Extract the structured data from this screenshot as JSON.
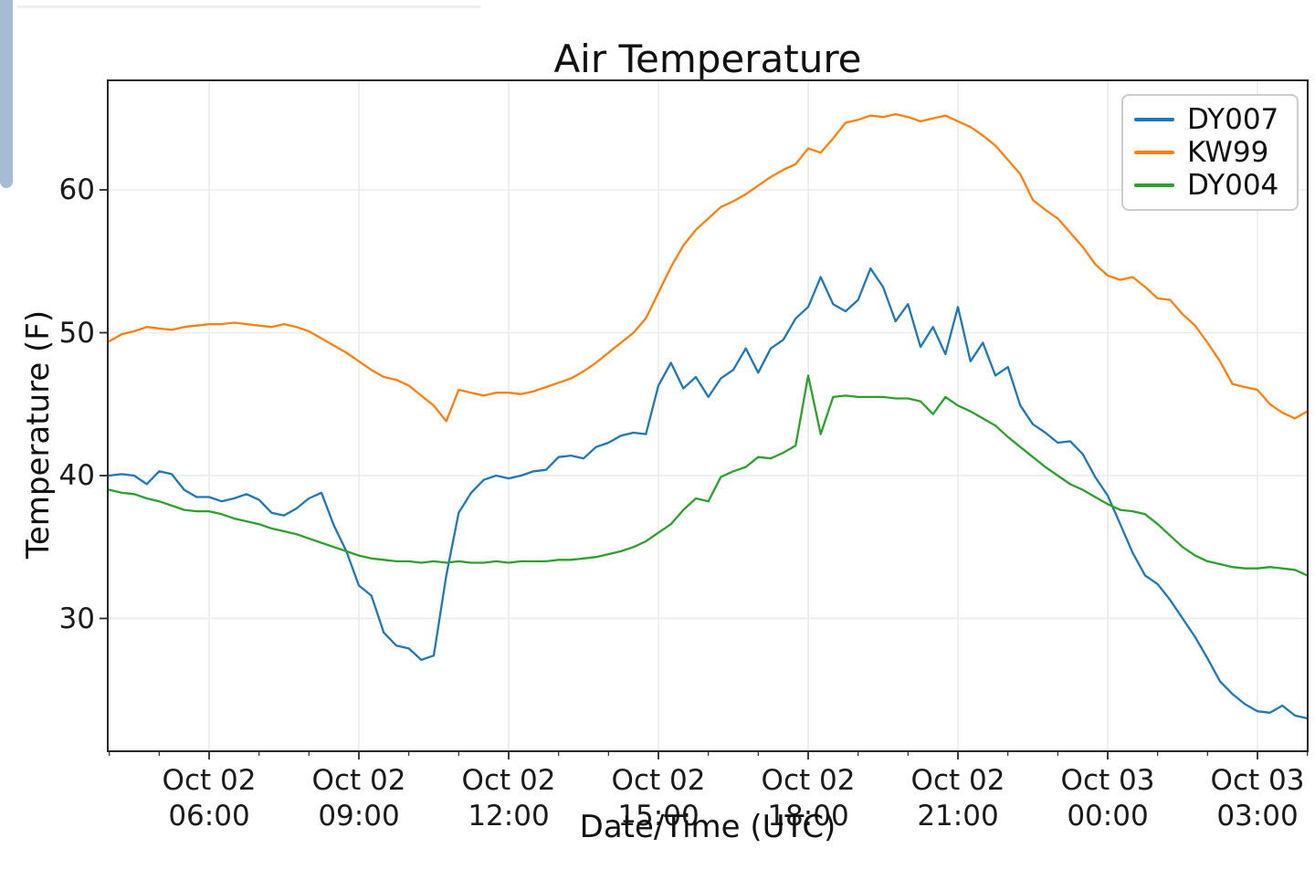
{
  "window": {
    "left_bar_color": "#a4bcd4",
    "top_edge_color": "#f0f0f1"
  },
  "chart_data": {
    "type": "line",
    "title": "Air Temperature",
    "xlabel": "Date/Time (UTC)",
    "ylabel": "Temperature (F)",
    "grid": true,
    "legend_position": "upper right",
    "background": "#ffffff",
    "gridline_color": "#ebebeb",
    "spine_color": "#2a2a2a",
    "x_start": "Oct 02 04:00 UTC",
    "x_end": "Oct 03 04:00 UTC",
    "sample_interval_minutes": 15,
    "start_hour": 4.0,
    "end_hour": 28.0,
    "ylim": [
      20.7,
      67.6
    ],
    "y_ticks": [
      30,
      40,
      50,
      60
    ],
    "x_ticks": [
      {
        "hour": 6,
        "line1": "Oct 02",
        "line2": "06:00"
      },
      {
        "hour": 9,
        "line1": "Oct 02",
        "line2": "09:00"
      },
      {
        "hour": 12,
        "line1": "Oct 02",
        "line2": "12:00"
      },
      {
        "hour": 15,
        "line1": "Oct 02",
        "line2": "15:00"
      },
      {
        "hour": 18,
        "line1": "Oct 02",
        "line2": "18:00"
      },
      {
        "hour": 21,
        "line1": "Oct 02",
        "line2": "21:00"
      },
      {
        "hour": 24,
        "line1": "Oct 03",
        "line2": "00:00"
      },
      {
        "hour": 27,
        "line1": "Oct 03",
        "line2": "03:00"
      }
    ],
    "series": [
      {
        "name": "DY007",
        "color": "#1f77b4",
        "values": [
          40.0,
          40.1,
          40.0,
          39.4,
          40.3,
          40.1,
          39.0,
          38.5,
          38.5,
          38.2,
          38.4,
          38.7,
          38.3,
          37.4,
          37.2,
          37.7,
          38.4,
          38.8,
          36.5,
          34.7,
          32.3,
          31.6,
          29.0,
          28.1,
          27.9,
          27.1,
          27.4,
          33.0,
          37.4,
          38.8,
          39.7,
          40.0,
          39.8,
          40.0,
          40.3,
          40.4,
          41.3,
          41.4,
          41.2,
          42.0,
          42.3,
          42.8,
          43.0,
          42.9,
          46.3,
          47.9,
          46.1,
          46.9,
          45.5,
          46.8,
          47.4,
          48.9,
          47.2,
          48.9,
          49.5,
          51.0,
          51.8,
          53.9,
          52.0,
          51.5,
          52.3,
          54.5,
          53.2,
          50.8,
          52.0,
          49.0,
          50.4,
          48.5,
          51.8,
          48.0,
          49.3,
          47.0,
          47.6,
          44.9,
          43.6,
          43.0,
          42.3,
          42.4,
          41.5,
          39.9,
          38.6,
          36.6,
          34.6,
          33.0,
          32.4,
          31.3,
          30.0,
          28.7,
          27.2,
          25.6,
          24.7,
          24.0,
          23.5,
          23.4,
          23.9,
          23.2,
          23.0
        ]
      },
      {
        "name": "KW99",
        "color": "#ff7f0e",
        "values": [
          49.4,
          49.9,
          50.1,
          50.4,
          50.3,
          50.2,
          50.4,
          50.5,
          50.6,
          50.6,
          50.7,
          50.6,
          50.5,
          50.4,
          50.6,
          50.4,
          50.1,
          49.6,
          49.1,
          48.6,
          48.0,
          47.4,
          46.9,
          46.7,
          46.3,
          45.6,
          44.9,
          43.8,
          46.0,
          45.8,
          45.6,
          45.8,
          45.8,
          45.7,
          45.9,
          46.2,
          46.5,
          46.8,
          47.3,
          47.9,
          48.6,
          49.3,
          50.0,
          51.0,
          52.8,
          54.6,
          56.1,
          57.2,
          58.0,
          58.8,
          59.2,
          59.7,
          60.3,
          60.9,
          61.4,
          61.8,
          62.9,
          62.6,
          63.6,
          64.7,
          64.9,
          65.2,
          65.1,
          65.3,
          65.1,
          64.8,
          65.0,
          65.2,
          64.8,
          64.4,
          63.8,
          63.1,
          62.1,
          61.1,
          59.3,
          58.6,
          58.0,
          57.0,
          56.0,
          54.8,
          54.0,
          53.7,
          53.9,
          53.2,
          52.4,
          52.3,
          51.3,
          50.5,
          49.3,
          48.0,
          46.4,
          46.2,
          46.0,
          45.0,
          44.4,
          44.0,
          44.5
        ]
      },
      {
        "name": "DY004",
        "color": "#2ca02c",
        "values": [
          39.0,
          38.8,
          38.7,
          38.4,
          38.2,
          37.9,
          37.6,
          37.5,
          37.5,
          37.3,
          37.0,
          36.8,
          36.6,
          36.3,
          36.1,
          35.9,
          35.6,
          35.3,
          35.0,
          34.7,
          34.4,
          34.2,
          34.1,
          34.0,
          34.0,
          33.9,
          34.0,
          33.9,
          34.0,
          33.9,
          33.9,
          34.0,
          33.9,
          34.0,
          34.0,
          34.0,
          34.1,
          34.1,
          34.2,
          34.3,
          34.5,
          34.7,
          35.0,
          35.4,
          36.0,
          36.6,
          37.6,
          38.4,
          38.2,
          39.9,
          40.3,
          40.6,
          41.3,
          41.2,
          41.6,
          42.1,
          47.0,
          42.9,
          45.5,
          45.6,
          45.5,
          45.5,
          45.5,
          45.4,
          45.4,
          45.2,
          44.3,
          45.5,
          44.9,
          44.5,
          44.0,
          43.5,
          42.7,
          42.0,
          41.3,
          40.6,
          40.0,
          39.4,
          39.0,
          38.5,
          38.0,
          37.6,
          37.5,
          37.3,
          36.6,
          35.8,
          35.0,
          34.4,
          34.0,
          33.8,
          33.6,
          33.5,
          33.5,
          33.6,
          33.5,
          33.4,
          33.0
        ]
      }
    ]
  }
}
